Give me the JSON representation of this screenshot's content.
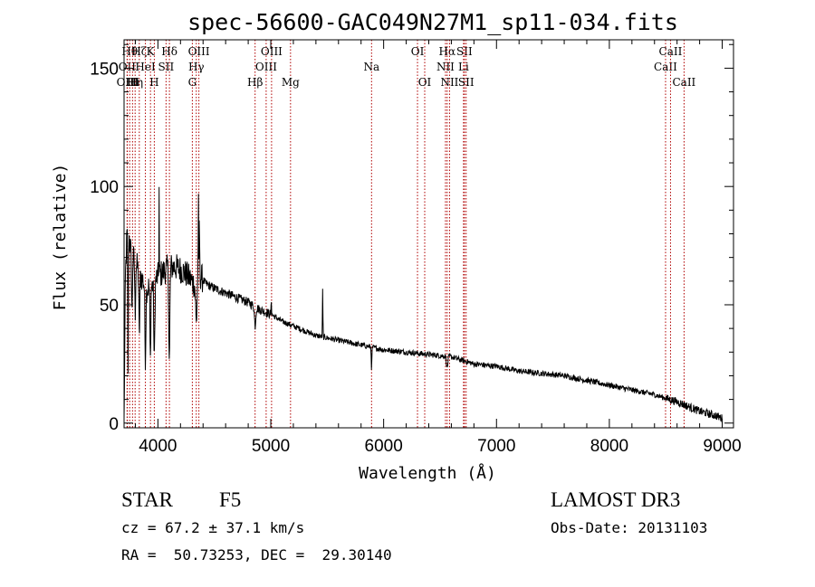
{
  "chart_data": {
    "type": "line",
    "title": "spec-56600-GAC049N27M1_sp11-034.fits",
    "xlabel": "Wavelength (Å)",
    "ylabel": "Flux (relative)",
    "xlim": [
      3700,
      9100
    ],
    "ylim": [
      -2,
      162
    ],
    "xticks": [
      4000,
      5000,
      6000,
      7000,
      8000,
      9000
    ],
    "yticks": [
      0,
      50,
      100,
      150
    ],
    "minor_x_step": 200,
    "minor_y_step": 10,
    "series_color": "#000000",
    "line_color": "#b00000",
    "spectrum_anchors": [
      [
        3700,
        0
      ],
      [
        3712,
        62
      ],
      [
        3730,
        85
      ],
      [
        3760,
        72
      ],
      [
        3800,
        68
      ],
      [
        3850,
        62
      ],
      [
        3900,
        57
      ],
      [
        3950,
        58
      ],
      [
        4000,
        62
      ],
      [
        4050,
        64
      ],
      [
        4100,
        66
      ],
      [
        4150,
        66
      ],
      [
        4200,
        65
      ],
      [
        4250,
        63
      ],
      [
        4300,
        60
      ],
      [
        4330,
        58
      ],
      [
        4360,
        64
      ],
      [
        4380,
        62
      ],
      [
        4420,
        59
      ],
      [
        4500,
        57
      ],
      [
        4600,
        55
      ],
      [
        4700,
        53
      ],
      [
        4800,
        51
      ],
      [
        4900,
        48
      ],
      [
        5000,
        46
      ],
      [
        5100,
        43
      ],
      [
        5200,
        41
      ],
      [
        5300,
        39
      ],
      [
        5400,
        37
      ],
      [
        5500,
        36
      ],
      [
        5600,
        35
      ],
      [
        5700,
        34
      ],
      [
        5800,
        33
      ],
      [
        5900,
        32
      ],
      [
        6000,
        31
      ],
      [
        6200,
        30
      ],
      [
        6400,
        29
      ],
      [
        6600,
        28
      ],
      [
        6800,
        25
      ],
      [
        7000,
        24
      ],
      [
        7200,
        22
      ],
      [
        7400,
        21
      ],
      [
        7600,
        20
      ],
      [
        7800,
        18
      ],
      [
        8000,
        16
      ],
      [
        8200,
        14
      ],
      [
        8400,
        12
      ],
      [
        8600,
        9
      ],
      [
        8800,
        5
      ],
      [
        8950,
        3
      ],
      [
        9000,
        2
      ]
    ],
    "spectrum_features": [
      {
        "x": 3735,
        "depth": -60,
        "width": 4
      },
      {
        "x": 3770,
        "depth": -25,
        "width": 5
      },
      {
        "x": 3798,
        "depth": -22,
        "width": 5
      },
      {
        "x": 3835,
        "depth": -28,
        "width": 6
      },
      {
        "x": 3889,
        "depth": -30,
        "width": 6
      },
      {
        "x": 3933,
        "depth": -32,
        "width": 5
      },
      {
        "x": 3968,
        "depth": -34,
        "width": 6
      },
      {
        "x": 4010,
        "depth": 38,
        "width": 2
      },
      {
        "x": 4101,
        "depth": -40,
        "width": 7
      },
      {
        "x": 4340,
        "depth": -18,
        "width": 8
      },
      {
        "x": 4358,
        "depth": 40,
        "width": 2
      },
      {
        "x": 4367,
        "depth": 34,
        "width": 2
      },
      {
        "x": 4861,
        "depth": -8,
        "width": 8
      },
      {
        "x": 5005,
        "depth": 6,
        "width": 3
      },
      {
        "x": 5460,
        "depth": 20,
        "width": 3
      },
      {
        "x": 5893,
        "depth": -9,
        "width": 4
      },
      {
        "x": 6563,
        "depth": -5,
        "width": 8
      }
    ],
    "lines": [
      {
        "wl": 3727,
        "label": "OII",
        "row": 1
      },
      {
        "wl": 3729,
        "label": "OIII",
        "row": 2
      },
      {
        "wl": 3750,
        "label": "Hθ",
        "row": 0
      },
      {
        "wl": 3775,
        "label": "HI",
        "row": 2
      },
      {
        "wl": 3798,
        "label": "Hη",
        "row": 2
      },
      {
        "wl": 3835,
        "label": "Hζ",
        "row": 0
      },
      {
        "wl": 3889,
        "label": "HeI",
        "row": 1
      },
      {
        "wl": 3934,
        "label": "K",
        "row": 0
      },
      {
        "wl": 3968,
        "label": "H",
        "row": 2
      },
      {
        "wl": 4072,
        "label": "SII",
        "row": 1
      },
      {
        "wl": 4102,
        "label": "Hδ",
        "row": 0
      },
      {
        "wl": 4305,
        "label": "G",
        "row": 2
      },
      {
        "wl": 4340,
        "label": "Hγ",
        "row": 1
      },
      {
        "wl": 4363,
        "label": "OIII",
        "row": 0
      },
      {
        "wl": 4861,
        "label": "Hβ",
        "row": 2
      },
      {
        "wl": 4959,
        "label": "OIII",
        "row": 1
      },
      {
        "wl": 5007,
        "label": "OIII",
        "row": 0
      },
      {
        "wl": 5175,
        "label": "Mg",
        "row": 2
      },
      {
        "wl": 5893,
        "label": "Na",
        "row": 1
      },
      {
        "wl": 6300,
        "label": "OI",
        "row": 0
      },
      {
        "wl": 6364,
        "label": "OI",
        "row": 2
      },
      {
        "wl": 6548,
        "label": "NII",
        "row": 1
      },
      {
        "wl": 6563,
        "label": "Hα",
        "row": 0
      },
      {
        "wl": 6584,
        "label": "NII",
        "row": 2
      },
      {
        "wl": 6708,
        "label": "Li",
        "row": 1
      },
      {
        "wl": 6716,
        "label": "SII",
        "row": 0
      },
      {
        "wl": 6731,
        "label": "SII",
        "row": 2
      },
      {
        "wl": 8498,
        "label": "CaII",
        "row": 1
      },
      {
        "wl": 8542,
        "label": "CaII",
        "row": 0
      },
      {
        "wl": 8662,
        "label": "CaII",
        "row": 2
      }
    ]
  },
  "info": {
    "class": "STAR",
    "subclass": "F5",
    "survey": "LAMOST DR3",
    "cz": "cz = 67.2 ± 37.1 km/s",
    "obs_date": "Obs-Date: 20131103",
    "coords": "RA =  50.73253, DEC =  29.30140"
  }
}
